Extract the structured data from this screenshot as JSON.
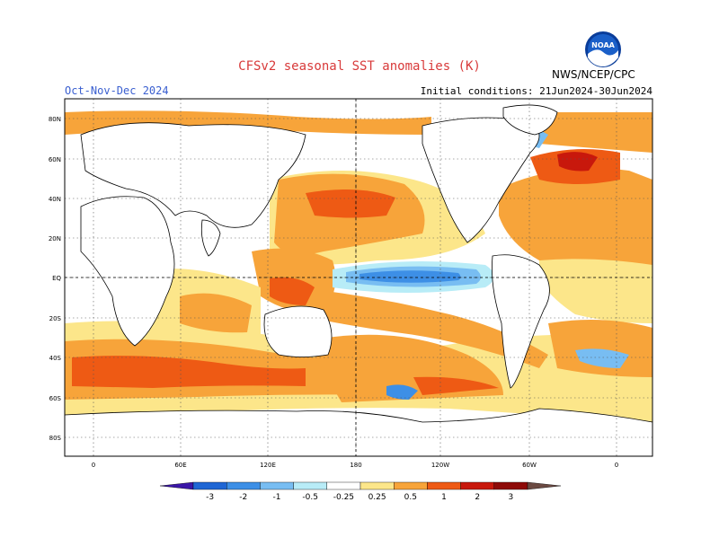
{
  "header": {
    "title": "CFSv2 seasonal SST anomalies (K)",
    "season": "Oct-Nov-Dec 2024",
    "initial_conditions": "Initial conditions: 21Jun2024-30Jun2024",
    "agency": "NWS/NCEP/CPC",
    "logo_text": "NOAA"
  },
  "map": {
    "lat_labels": [
      "80N",
      "60N",
      "40N",
      "20N",
      "EQ",
      "20S",
      "40S",
      "60S",
      "80S"
    ],
    "lon_labels": [
      "0",
      "60E",
      "120E",
      "180",
      "120W",
      "60W",
      "0"
    ]
  },
  "colorbar": {
    "tick_labels": [
      "-3",
      "-2",
      "-1",
      "-0.5",
      "-0.25",
      "0.25",
      "0.5",
      "1",
      "2",
      "3"
    ],
    "colors": [
      "#3b16a8",
      "#1f66d4",
      "#3d8fe6",
      "#78bdf2",
      "#b8ecf7",
      "#ffffff",
      "#fce68a",
      "#f7a43a",
      "#ee5a14",
      "#c8180c",
      "#8e0a08",
      "#6b4a42"
    ]
  },
  "colors": {
    "title": "#d83a3a",
    "season": "#3a5fd0",
    "land": "#ffffff",
    "coast": "#000000"
  }
}
